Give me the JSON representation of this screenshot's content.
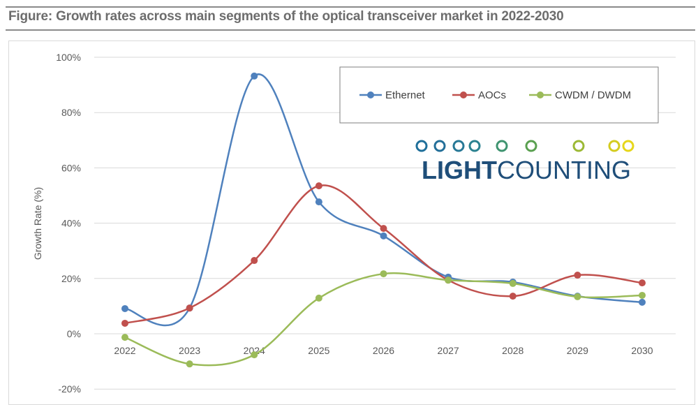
{
  "title": "Figure: Growth rates across main segments of the optical transceiver market in 2022-2030",
  "logo": {
    "text_bold": "LIGHT",
    "text_regular": "COUNTING",
    "color": "#1f4e79"
  },
  "chart_data": {
    "type": "line",
    "smooth": true,
    "categories": [
      "2022",
      "2023",
      "2024",
      "2025",
      "2026",
      "2027",
      "2028",
      "2029",
      "2030"
    ],
    "ylabel": "Growth Rate (%)",
    "xlabel": "",
    "ylim": [
      -20,
      100
    ],
    "yticks": [
      -20,
      0,
      20,
      40,
      60,
      80,
      100
    ],
    "ytick_labels": [
      "-20%",
      "0%",
      "20%",
      "40%",
      "60%",
      "80%",
      "100%"
    ],
    "grid": true,
    "legend_position": "top-right",
    "series": [
      {
        "name": "Ethernet",
        "color": "#4f81bd",
        "values": [
          9.1,
          9.3,
          93.2,
          47.7,
          35.4,
          20.5,
          18.7,
          13.6,
          11.4
        ]
      },
      {
        "name": "AOCs",
        "color": "#c0504d",
        "values": [
          3.8,
          9.3,
          26.5,
          53.5,
          38.1,
          19.4,
          13.6,
          21.2,
          18.4
        ]
      },
      {
        "name": "CWDM / DWDM",
        "color": "#9bbb59",
        "values": [
          -1.3,
          -10.9,
          -7.6,
          12.9,
          21.7,
          19.4,
          18.2,
          13.4,
          13.9
        ]
      }
    ]
  }
}
